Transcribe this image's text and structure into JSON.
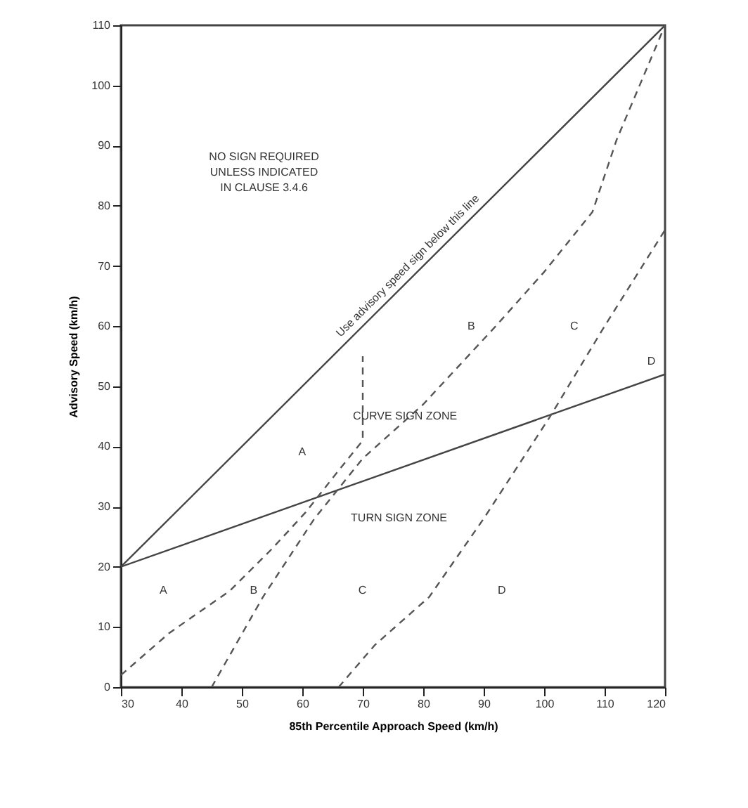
{
  "chart_data": {
    "type": "line",
    "xlabel": "85th Percentile Approach Speed (km/h)",
    "ylabel": "Advisory Speed (km/h)",
    "xlim": [
      30,
      120
    ],
    "xticks": [
      30,
      40,
      50,
      60,
      70,
      80,
      90,
      100,
      110,
      120
    ],
    "ylim": [
      0,
      110
    ],
    "yticks": [
      0,
      10,
      20,
      30,
      40,
      50,
      60,
      70,
      80,
      90,
      100,
      110
    ],
    "grid": false,
    "marker": "none",
    "series": [
      {
        "color": "#444444",
        "line_style": "solid",
        "x": [
          30,
          120
        ],
        "values": [
          20,
          110
        ]
      },
      {
        "color": "#444444",
        "line_style": "solid",
        "x": [
          30,
          120
        ],
        "values": [
          20,
          52
        ]
      },
      {
        "color": "#555555",
        "line_style": "dashed",
        "x": [
          30,
          38,
          48,
          55,
          60.5,
          66,
          70,
          70
        ],
        "values": [
          2,
          9,
          16,
          23,
          29,
          36,
          41,
          55
        ]
      },
      {
        "color": "#555555",
        "line_style": "dashed",
        "x": [
          45,
          53.5,
          62,
          70,
          80,
          92,
          100,
          108,
          112,
          120
        ],
        "values": [
          0,
          15,
          28,
          38,
          47,
          60,
          69,
          79,
          91,
          110
        ]
      },
      {
        "color": "#555555",
        "line_style": "dashed",
        "x": [
          66,
          72,
          81,
          90,
          101,
          110,
          120
        ],
        "values": [
          0,
          7,
          15,
          28,
          45,
          60,
          76
        ]
      }
    ],
    "annotations": [
      "Use advisory speed sign below this line",
      "NO SIGN REQUIRED\nUNLESS INDICATED\nIN CLAUSE 3.4.6",
      "CURVE SIGN ZONE",
      "TURN SIGN ZONE",
      "A",
      "B",
      "C",
      "D",
      "A",
      "B",
      "C",
      "D"
    ]
  }
}
